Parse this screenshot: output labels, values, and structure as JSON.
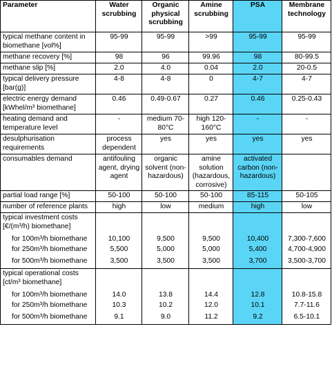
{
  "header": {
    "parameter": "Parameter",
    "water": "Water scrubbing",
    "organic": "Organic physical scrubbing",
    "amine": "Amine scrubbing",
    "psa": "PSA",
    "membrane": "Membrane technology"
  },
  "rows": [
    {
      "label": "typical methane content in biomethane [vol%]",
      "values": [
        "95-99",
        "95-99",
        ">99",
        "95-99",
        "95-99"
      ]
    },
    {
      "label": "methane recovery [%]",
      "values": [
        "98",
        "96",
        "99.96",
        "98",
        "80-99.5"
      ]
    },
    {
      "label": "methane slip [%]",
      "values": [
        "2.0",
        "4.0",
        "0.04",
        "2.0",
        "20-0.5"
      ]
    },
    {
      "label": "typical delivery pressure [bar(g)]",
      "values": [
        "4-8",
        "4-8",
        "0",
        "4-7",
        "4-7"
      ]
    },
    {
      "label": "electric energy demand [kWhel/m³ biomethane]",
      "values": [
        "0.46",
        "0.49-0.67",
        "0.27",
        "0.46",
        "0.25-0.43"
      ]
    },
    {
      "label": "heating demand and temperature level",
      "values": [
        "-",
        "medium 70-80°C",
        "high 120-160°C",
        "-",
        "-"
      ]
    },
    {
      "label": "desulphurisation requirements",
      "values": [
        "process dependent",
        "yes",
        "yes",
        "yes",
        "yes"
      ]
    },
    {
      "label": "consumables demand",
      "values": [
        "antifouling agent, drying agent",
        "organic solvent (non-hazardous)",
        "amine solution (hazardous, corrosive)",
        "activated carbon (non-hazardous)",
        ""
      ]
    },
    {
      "label": "partial load range [%]",
      "values": [
        "50-100",
        "50-100",
        "50-100",
        "85-115",
        "50-105"
      ]
    },
    {
      "label": "number of reference plants",
      "values": [
        "high",
        "low",
        "medium",
        "high",
        "low"
      ]
    }
  ],
  "investment": {
    "label": "typical investment costs [€/(m³/h) biomethane]",
    "rows": [
      {
        "label": "for 100m³/h biomethane",
        "values": [
          "10,100",
          "9,500",
          "9,500",
          "10,400",
          "7,300-7,600"
        ]
      },
      {
        "label": "for 250m³/h biomethane",
        "values": [
          "5,500",
          "5,000",
          "5,000",
          "5,400",
          "4,700-4,900"
        ]
      },
      {
        "label": "for 500m³/h biomethane",
        "values": [
          "3,500",
          "3,500",
          "3,500",
          "3,700",
          "3,500-3,700"
        ]
      }
    ]
  },
  "operational": {
    "label": "typical operational costs [ct/m³ biomethane]",
    "rows": [
      {
        "label": "for 100m³/h biomethane",
        "values": [
          "14.0",
          "13.8",
          "14.4",
          "12.8",
          "10.8-15.8"
        ]
      },
      {
        "label": "for 250m³/h biomethane",
        "values": [
          "10.3",
          "10.2",
          "12.0",
          "10.1",
          "7.7-11.6"
        ]
      },
      {
        "label": "for 500m³/h biomethane",
        "values": [
          "9.1",
          "9.0",
          "11.2",
          "9.2",
          "6.5-10.1"
        ]
      }
    ]
  },
  "colors": {
    "psa_highlight": "#5bd5f5",
    "border": "#000000"
  }
}
